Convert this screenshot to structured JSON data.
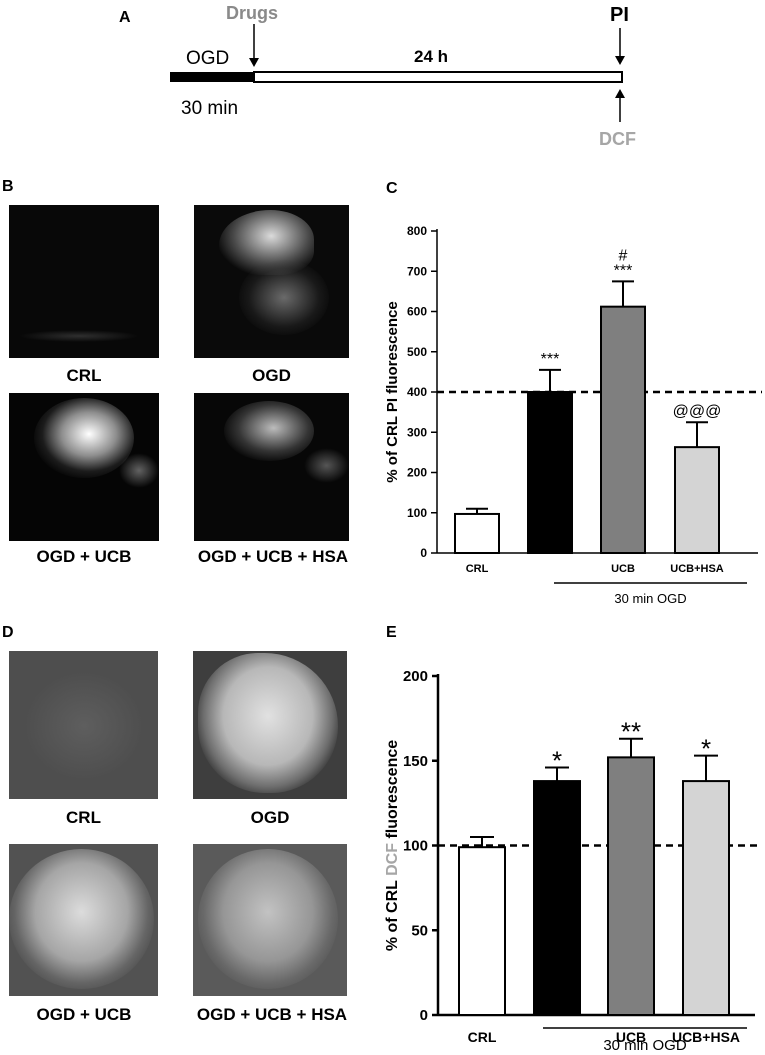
{
  "panels": {
    "a": "A",
    "b": "B",
    "c": "C",
    "d": "D",
    "e": "E"
  },
  "timeline": {
    "drugs": "Drugs",
    "ogd": "OGD",
    "duration": "24 h",
    "pi": "PI",
    "dcf": "DCF",
    "ogd_time": "30 min"
  },
  "micrographs_pi": [
    "CRL",
    "OGD",
    "OGD + UCB",
    "OGD + UCB + HSA"
  ],
  "micrographs_dcf": [
    "CRL",
    "OGD",
    "OGD + UCB",
    "OGD + UCB + HSA"
  ],
  "colors": {
    "bar1": "#ffffff",
    "bar2": "#000000",
    "bar3": "#7f7f7f",
    "bar4": "#d4d4d4",
    "dcf_label": "#a6a6a6"
  },
  "chart_data": [
    {
      "type": "bar",
      "panel": "C",
      "ylabel": "% of CRL PI fluorescence",
      "categories": [
        "CRL",
        "",
        "UCB",
        "UCB+HSA"
      ],
      "group_label": "30 min OGD",
      "values": [
        97,
        400,
        612,
        263
      ],
      "errors": [
        13,
        55,
        63,
        62
      ],
      "significance": [
        "",
        "***",
        "#\n***",
        "@@@"
      ],
      "reference_line": 400,
      "ylim": [
        0,
        800
      ],
      "yticks": [
        0,
        100,
        200,
        300,
        400,
        500,
        600,
        700,
        800
      ]
    },
    {
      "type": "bar",
      "panel": "E",
      "ylabel": "% of CRL DCF fluorescence",
      "categories": [
        "CRL",
        "",
        "UCB",
        "UCB+HSA"
      ],
      "group_label": "30 min OGD",
      "values": [
        99,
        138,
        152,
        138
      ],
      "errors": [
        6,
        8,
        11,
        15
      ],
      "significance": [
        "",
        "*",
        "**",
        "*"
      ],
      "reference_line": 100,
      "ylim": [
        0,
        200
      ],
      "yticks": [
        0,
        50,
        100,
        150,
        200
      ]
    }
  ]
}
